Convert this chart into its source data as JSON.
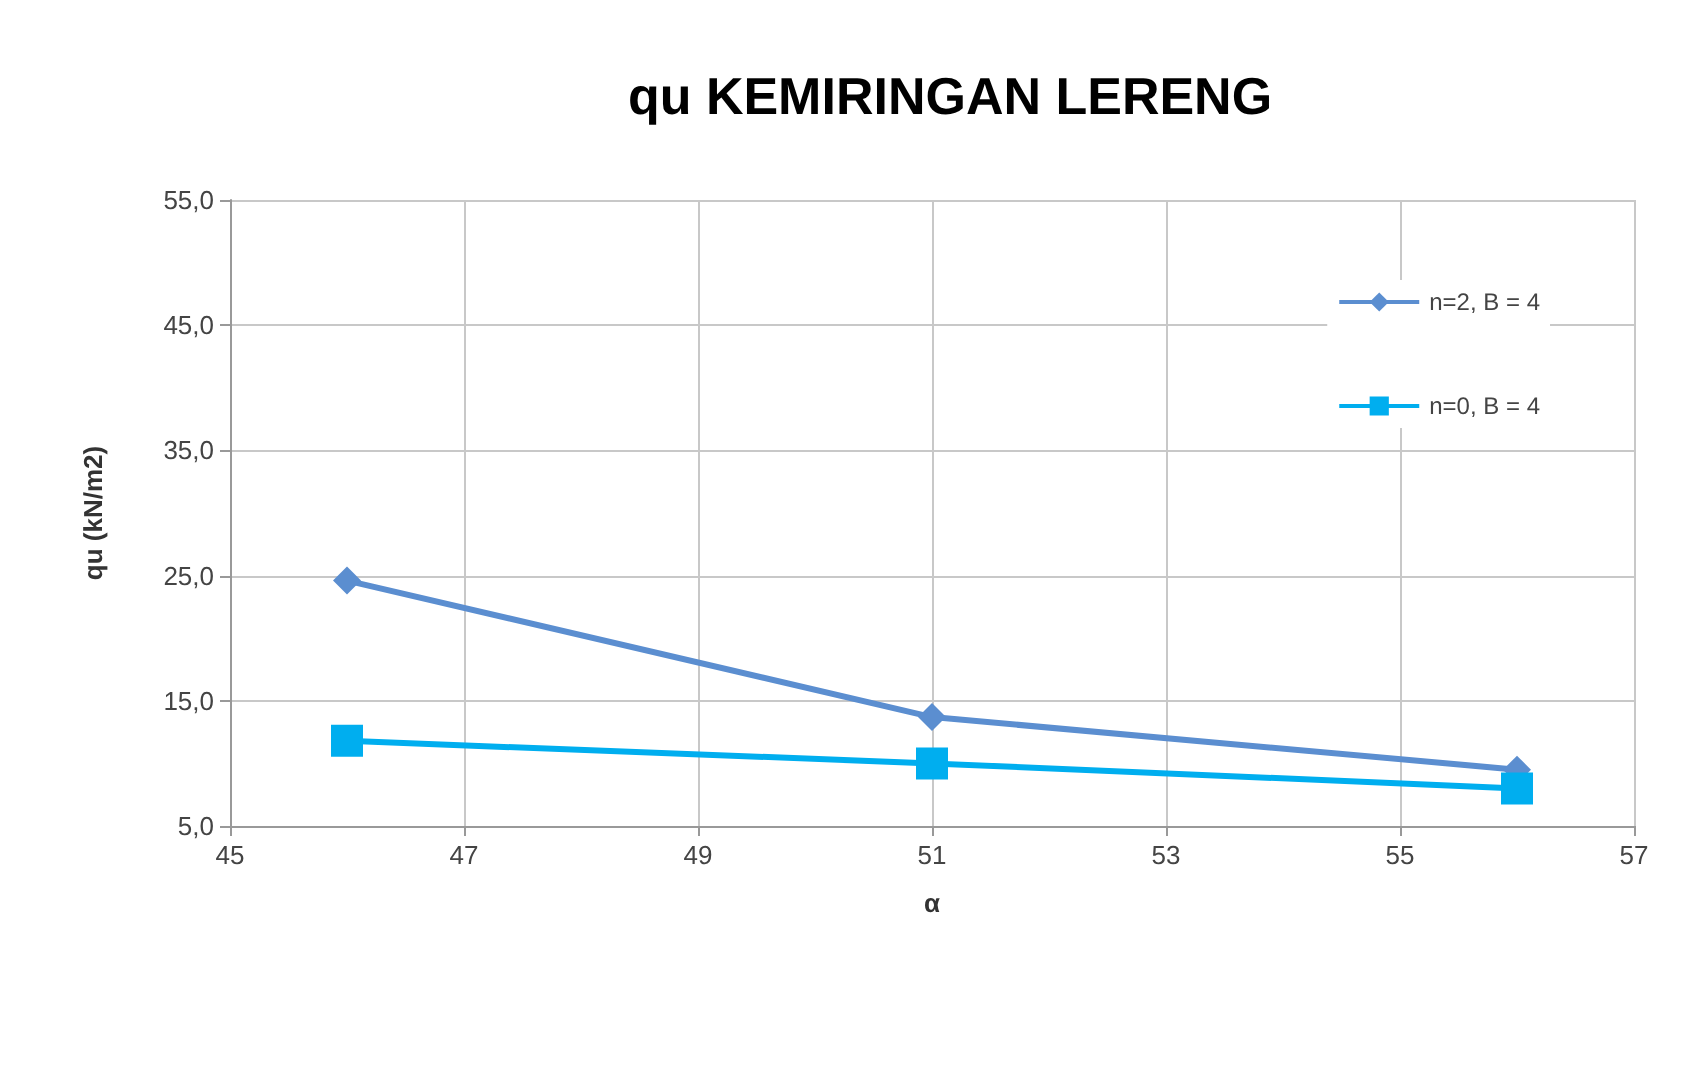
{
  "chart_data": {
    "type": "line",
    "title": "qu KEMIRINGAN LERENG",
    "xlabel": "α",
    "ylabel": "qu (kN/m2)",
    "x": [
      46,
      51,
      56
    ],
    "series": [
      {
        "name": "n=2, B = 4",
        "color": "#5b8ed0",
        "values": [
          24.6,
          13.7,
          9.5
        ],
        "marker": "diamond"
      },
      {
        "name": "n=0, B = 4",
        "color": "#00aeef",
        "values": [
          11.8,
          10.0,
          8.0
        ],
        "marker": "square"
      }
    ],
    "xlim": [
      45,
      57
    ],
    "xticks": [
      45,
      47,
      49,
      51,
      53,
      55,
      57
    ],
    "ylim": [
      5,
      55
    ],
    "yticks": [
      {
        "value": 5,
        "label": "5,0"
      },
      {
        "value": 15,
        "label": "15,0"
      },
      {
        "value": 25,
        "label": "25,0"
      },
      {
        "value": 35,
        "label": "35,0"
      },
      {
        "value": 45,
        "label": "45,0"
      },
      {
        "value": 55,
        "label": "55,0"
      }
    ],
    "grid": true,
    "legend": "top right",
    "line_style": "solid"
  }
}
